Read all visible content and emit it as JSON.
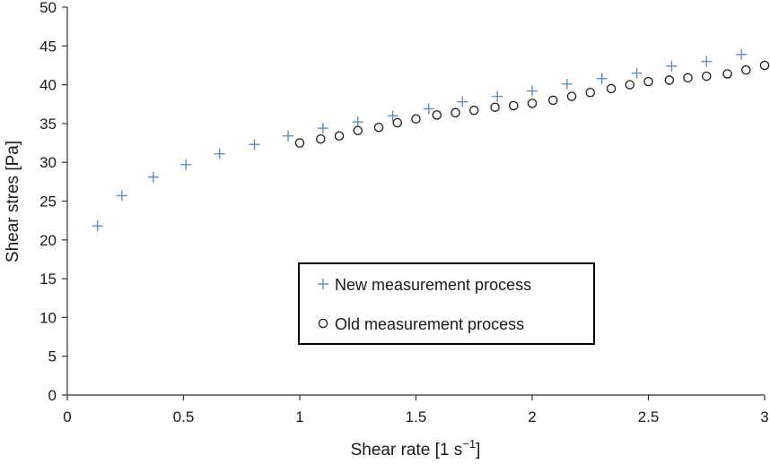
{
  "chart_data": {
    "type": "scatter",
    "xlabel": "Shear rate [1 s",
    "xlabel_exponent": "−1",
    "xlabel_suffix": "]",
    "ylabel": "Shear stres [Pa]",
    "xlim": [
      0,
      3
    ],
    "ylim": [
      0,
      50
    ],
    "x_ticks": [
      0,
      0.5,
      1,
      1.5,
      2,
      2.5,
      3
    ],
    "x_tick_labels": [
      "0",
      "0.5",
      "1",
      "1.5",
      "2",
      "2.5",
      "3"
    ],
    "y_ticks": [
      0,
      5,
      10,
      15,
      20,
      25,
      30,
      35,
      40,
      45,
      50
    ],
    "y_tick_labels": [
      "0",
      "5",
      "10",
      "15",
      "20",
      "25",
      "30",
      "35",
      "40",
      "45",
      "50"
    ],
    "grid": false,
    "legend_position": "lower-right",
    "series": [
      {
        "name": "New measurement process",
        "marker": "plus",
        "color": "#5b8ec4",
        "x": [
          0.13,
          0.235,
          0.37,
          0.51,
          0.655,
          0.805,
          0.95,
          1.1,
          1.25,
          1.4,
          1.555,
          1.7,
          1.85,
          2.0,
          2.15,
          2.3,
          2.45,
          2.6,
          2.75,
          2.9
        ],
        "y": [
          21.8,
          25.7,
          28.1,
          29.7,
          31.1,
          32.3,
          33.4,
          34.4,
          35.2,
          36.0,
          36.9,
          37.8,
          38.5,
          39.2,
          40.1,
          40.8,
          41.5,
          42.4,
          43.0,
          43.9
        ]
      },
      {
        "name": "Old measurement process",
        "marker": "circle",
        "color": "#1a1a1a",
        "x": [
          1.0,
          1.09,
          1.17,
          1.25,
          1.34,
          1.42,
          1.5,
          1.59,
          1.67,
          1.75,
          1.84,
          1.92,
          2.0,
          2.09,
          2.17,
          2.25,
          2.34,
          2.42,
          2.5,
          2.59,
          2.67,
          2.75,
          2.84,
          2.92,
          3.0
        ],
        "y": [
          32.5,
          33.0,
          33.4,
          34.1,
          34.5,
          35.1,
          35.6,
          36.1,
          36.4,
          36.7,
          37.1,
          37.3,
          37.6,
          38.0,
          38.5,
          39.0,
          39.5,
          40.0,
          40.4,
          40.6,
          40.9,
          41.1,
          41.4,
          41.9,
          42.5
        ]
      }
    ]
  }
}
